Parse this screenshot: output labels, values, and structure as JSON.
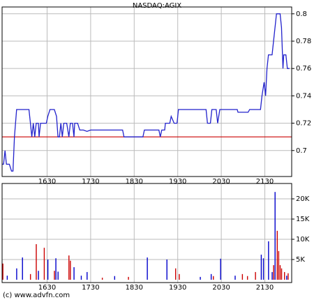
{
  "chart_data": [
    {
      "type": "line",
      "title": "NASDAQ:AGIX",
      "color": "#2222cc",
      "grid": true,
      "reference_line": {
        "value": 0.71,
        "color": "#cc0000"
      },
      "xlim": [
        928,
        1327
      ],
      "xticks": [
        {
          "value": 990,
          "label": "1630"
        },
        {
          "value": 1050,
          "label": "1730"
        },
        {
          "value": 1110,
          "label": "1830"
        },
        {
          "value": 1170,
          "label": "1930"
        },
        {
          "value": 1230,
          "label": "2030"
        },
        {
          "value": 1290,
          "label": "2130"
        }
      ],
      "ylim": [
        0.681,
        0.805
      ],
      "yticks": [
        0.7,
        0.72,
        0.74,
        0.76,
        0.78,
        0.8
      ],
      "x": [
        928,
        930,
        932,
        934,
        938,
        941,
        943,
        945,
        948,
        953,
        959,
        965,
        967,
        969,
        971,
        973,
        975,
        978,
        979,
        981,
        989,
        991,
        994,
        1000,
        1003,
        1005,
        1007,
        1009,
        1011,
        1013,
        1017,
        1020,
        1022,
        1025,
        1027,
        1028,
        1032,
        1035,
        1040,
        1045,
        1050,
        1069,
        1094,
        1096,
        1122,
        1124,
        1144,
        1146,
        1148,
        1152,
        1153,
        1159,
        1161,
        1165,
        1169,
        1171,
        1177,
        1209,
        1211,
        1215,
        1217,
        1223,
        1225,
        1228,
        1252,
        1253,
        1267,
        1269,
        1284,
        1286,
        1289,
        1291,
        1293,
        1295,
        1300,
        1302,
        1304,
        1306,
        1311,
        1313,
        1315,
        1316,
        1319,
        1321,
        1324
      ],
      "values": [
        0.69,
        0.69,
        0.7,
        0.69,
        0.69,
        0.685,
        0.685,
        0.71,
        0.73,
        0.73,
        0.73,
        0.73,
        0.72,
        0.71,
        0.72,
        0.71,
        0.72,
        0.72,
        0.71,
        0.72,
        0.72,
        0.725,
        0.73,
        0.73,
        0.725,
        0.71,
        0.71,
        0.72,
        0.71,
        0.72,
        0.72,
        0.71,
        0.72,
        0.72,
        0.71,
        0.72,
        0.72,
        0.715,
        0.715,
        0.714,
        0.715,
        0.715,
        0.715,
        0.71,
        0.71,
        0.715,
        0.715,
        0.71,
        0.715,
        0.715,
        0.72,
        0.72,
        0.725,
        0.72,
        0.72,
        0.73,
        0.73,
        0.73,
        0.72,
        0.72,
        0.73,
        0.73,
        0.72,
        0.73,
        0.73,
        0.728,
        0.728,
        0.73,
        0.73,
        0.74,
        0.75,
        0.74,
        0.76,
        0.77,
        0.77,
        0.78,
        0.79,
        0.8,
        0.8,
        0.79,
        0.76,
        0.77,
        0.77,
        0.76,
        0.76
      ]
    },
    {
      "type": "bar",
      "grid": true,
      "xlim": [
        928,
        1327
      ],
      "xticks": [
        {
          "value": 990,
          "label": "1630"
        },
        {
          "value": 1050,
          "label": "1730"
        },
        {
          "value": 1110,
          "label": "1830"
        },
        {
          "value": 1170,
          "label": "1930"
        },
        {
          "value": 1230,
          "label": "2030"
        },
        {
          "value": 1290,
          "label": "2130"
        }
      ],
      "ylim": [
        -700,
        23800
      ],
      "yticks": [
        {
          "value": 5000,
          "label": "5K"
        },
        {
          "value": 10000,
          "label": "10K"
        },
        {
          "value": 15000,
          "label": "15K"
        },
        {
          "value": 20000,
          "label": "20K"
        }
      ],
      "x": [
        929,
        935,
        948,
        956,
        967,
        975,
        978,
        986,
        991,
        1000,
        1002,
        1005,
        1020,
        1022,
        1027,
        1037,
        1045,
        1066,
        1083,
        1102,
        1128,
        1155,
        1167,
        1172,
        1201,
        1216,
        1219,
        1229,
        1249,
        1259,
        1266,
        1277,
        1285,
        1288,
        1295,
        1300,
        1302,
        1304,
        1307,
        1309,
        1311,
        1313,
        1317,
        1320,
        1322
      ],
      "values": [
        4000,
        1000,
        2800,
        5500,
        1400,
        8800,
        2200,
        7900,
        5000,
        2200,
        5300,
        2000,
        6000,
        4700,
        3100,
        1000,
        1900,
        500,
        900,
        700,
        5500,
        5000,
        2800,
        1400,
        700,
        1400,
        900,
        5200,
        1000,
        1400,
        900,
        1900,
        6200,
        5300,
        9500,
        1900,
        3600,
        21700,
        12100,
        7100,
        3600,
        2800,
        1900,
        1000,
        1600
      ],
      "colors": [
        "#cc0000",
        "#0000cc",
        "#0000cc",
        "#0000cc",
        "#cc0000",
        "#cc0000",
        "#0000cc",
        "#cc0000",
        "#0000cc",
        "#cc0000",
        "#0000cc",
        "#0000cc",
        "#cc0000",
        "#cc0000",
        "#0000cc",
        "#0000cc",
        "#0000cc",
        "#cc0000",
        "#0000cc",
        "#cc0000",
        "#0000cc",
        "#0000cc",
        "#cc0000",
        "#cc0000",
        "#0000cc",
        "#0000cc",
        "#cc0000",
        "#0000cc",
        "#0000cc",
        "#cc0000",
        "#cc0000",
        "#cc0000",
        "#0000cc",
        "#0000cc",
        "#0000cc",
        "#0000cc",
        "#cc0000",
        "#0000cc",
        "#cc0000",
        "#cc0000",
        "#cc0000",
        "#cc0000",
        "#cc0000",
        "#0000cc",
        "#cc0000"
      ]
    }
  ],
  "footer": "(c) www.advfn.com"
}
